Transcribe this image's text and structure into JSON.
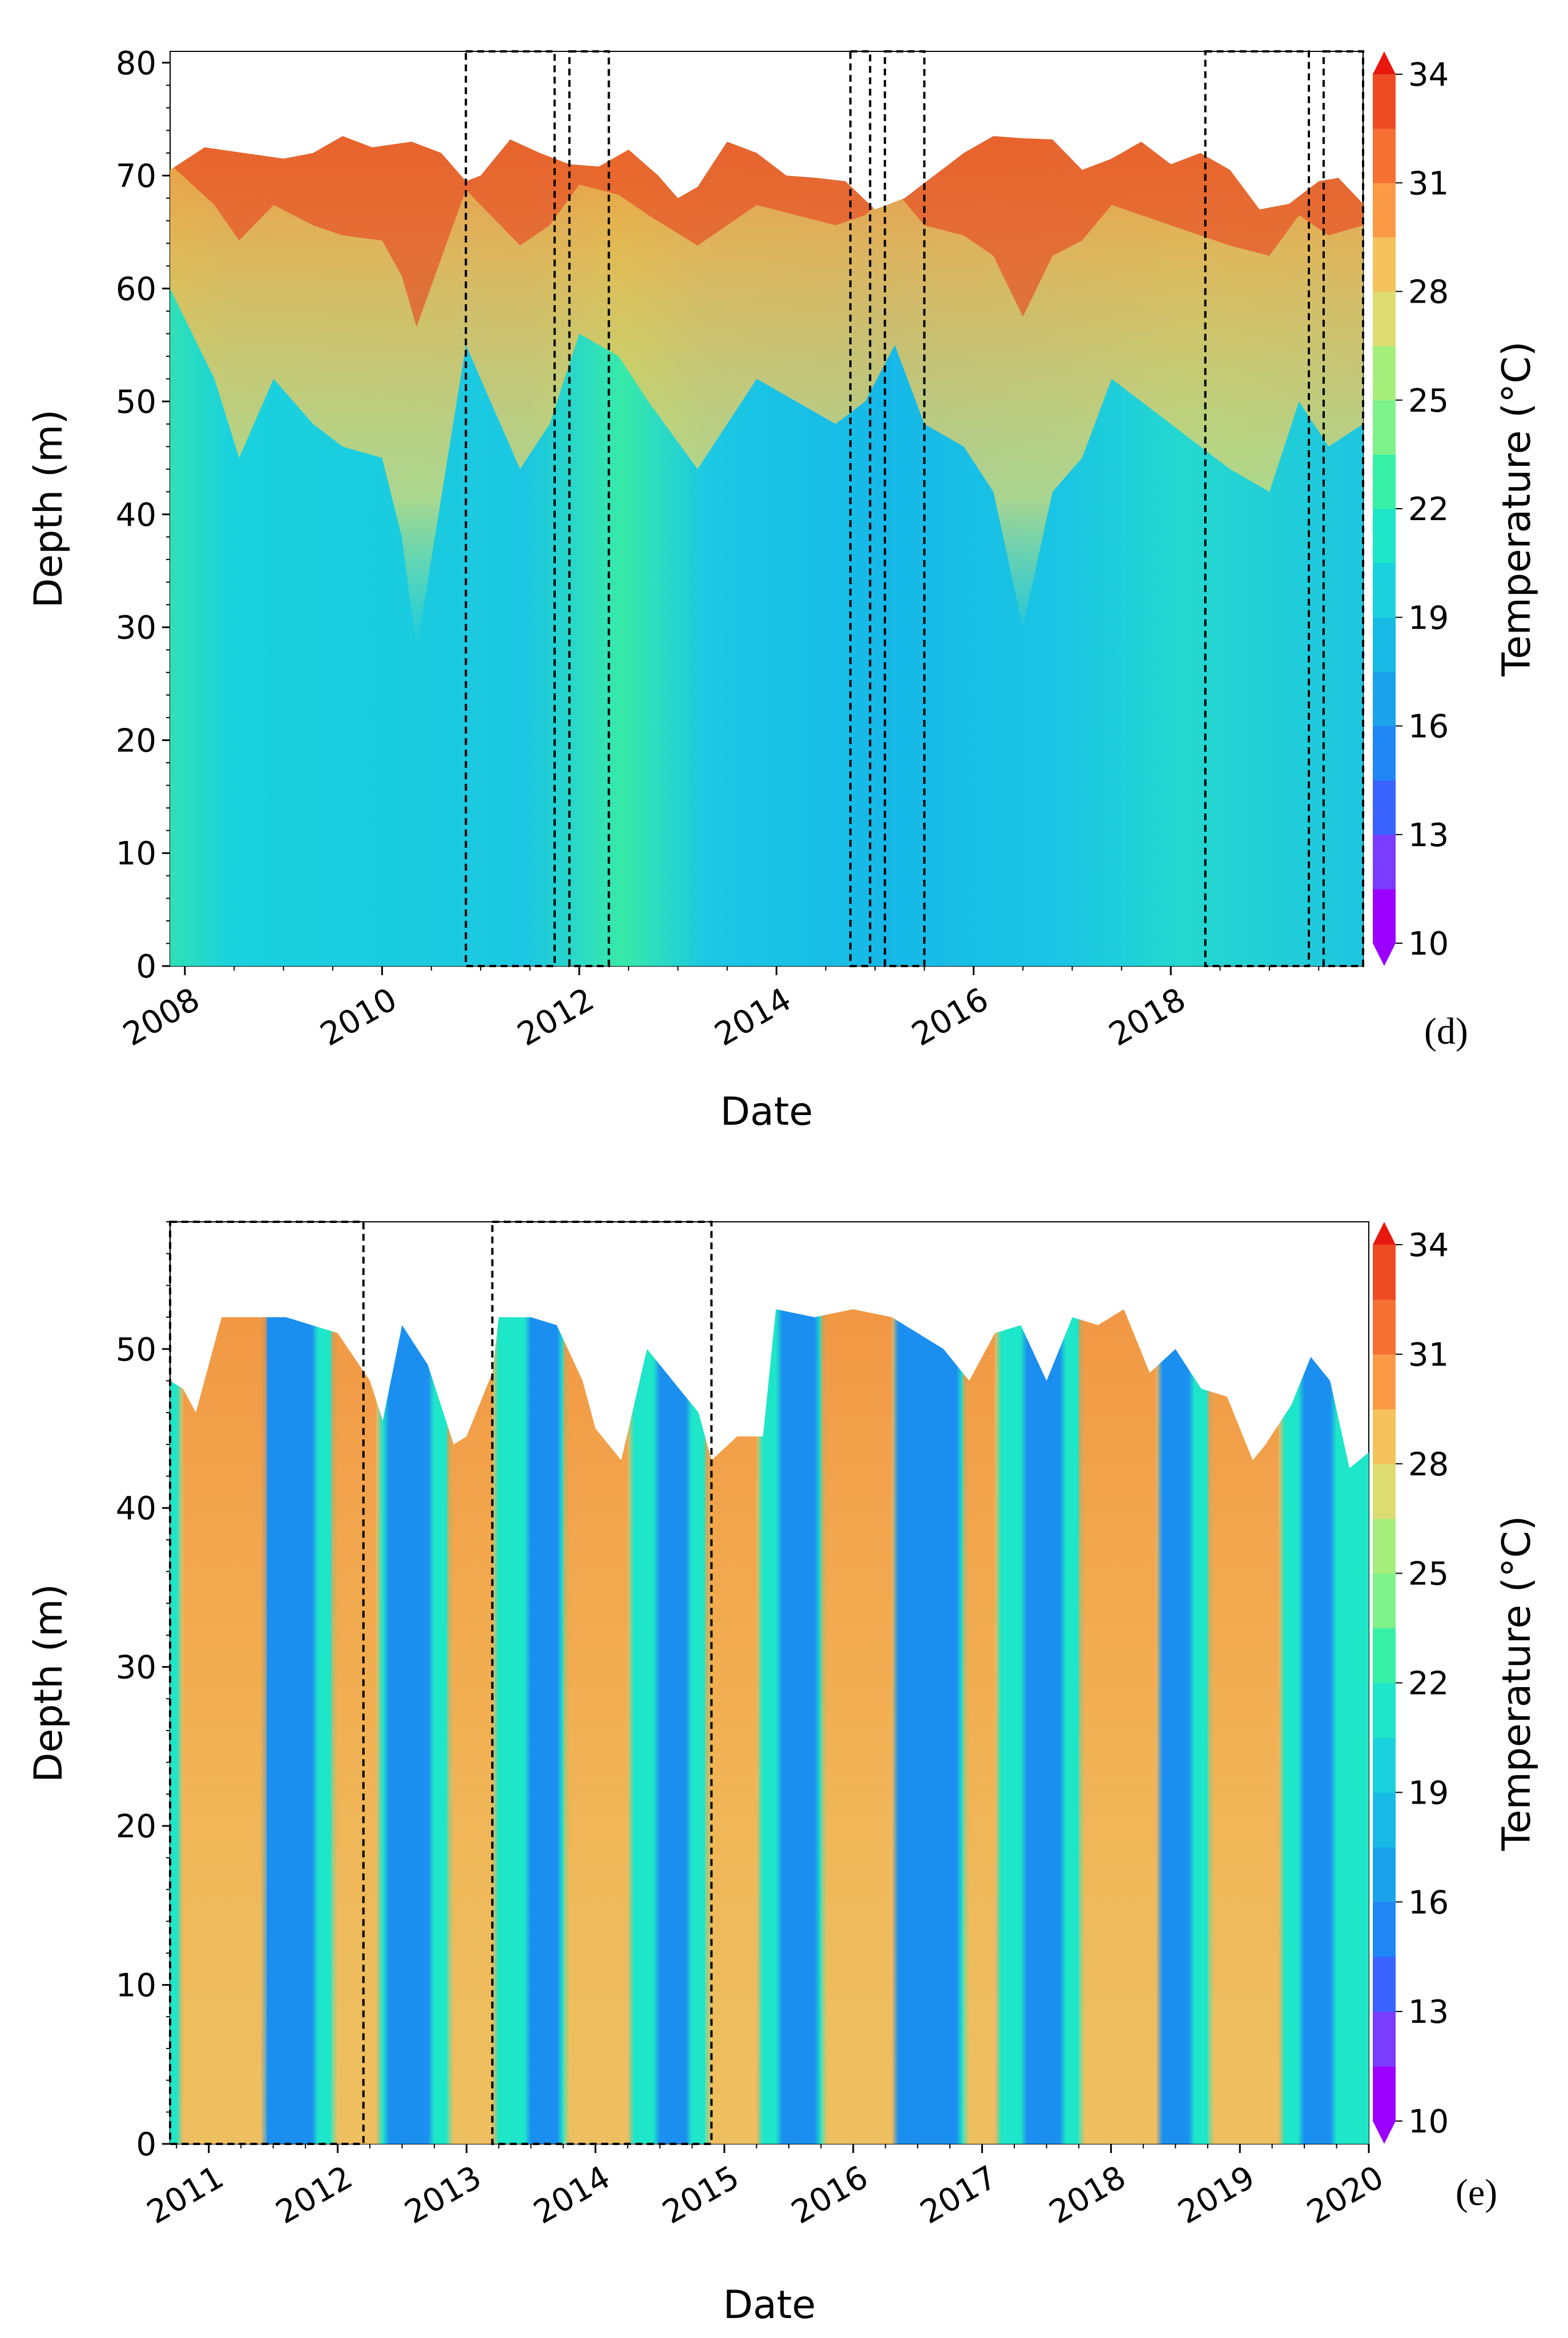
{
  "chart_data": [
    {
      "type": "heatmap",
      "panel_label": "(d)",
      "xlabel": "Date",
      "ylabel": "Depth (m)",
      "colorbar_label": "Temperature (°C)",
      "x_range": [
        2007.85,
        2019.95
      ],
      "ylim": [
        0,
        81
      ],
      "xticks": [
        2008,
        2010,
        2012,
        2014,
        2016,
        2018
      ],
      "xtick_labels": [
        "2008",
        "2010",
        "2012",
        "2014",
        "2016",
        "2018"
      ],
      "yticks": [
        0,
        10,
        20,
        30,
        40,
        50,
        60,
        70,
        80
      ],
      "ytick_labels": [
        "0",
        "10",
        "20",
        "30",
        "40",
        "50",
        "60",
        "70",
        "80"
      ],
      "colorbar_ticks": [
        10,
        13,
        16,
        19,
        22,
        25,
        28,
        31,
        34
      ],
      "colorbar_tick_labels": [
        "10",
        "13",
        "16",
        "19",
        "22",
        "25",
        "28",
        "31",
        "34"
      ],
      "surface_level": {
        "dates": [
          2007.85,
          2008.2,
          2008.6,
          2009.0,
          2009.3,
          2009.6,
          2009.9,
          2010.3,
          2010.6,
          2010.85,
          2011.0,
          2011.3,
          2011.6,
          2011.9,
          2012.2,
          2012.5,
          2012.8,
          2013.0,
          2013.2,
          2013.5,
          2013.8,
          2014.1,
          2014.4,
          2014.7,
          2015.0,
          2015.3,
          2015.6,
          2015.9,
          2016.2,
          2016.5,
          2016.8,
          2017.1,
          2017.4,
          2017.7,
          2018.0,
          2018.3,
          2018.6,
          2018.9,
          2019.2,
          2019.5,
          2019.7,
          2019.95
        ],
        "depths": [
          70.5,
          72.5,
          72.0,
          71.5,
          72.0,
          73.5,
          72.5,
          73.0,
          72.0,
          69.5,
          70.0,
          73.2,
          72.0,
          71.0,
          70.8,
          72.3,
          70.0,
          68.0,
          69.0,
          73.0,
          72.0,
          70.0,
          69.8,
          69.5,
          67.0,
          68.0,
          70.0,
          72.0,
          73.5,
          73.3,
          73.2,
          70.5,
          71.5,
          73.0,
          71.0,
          72.0,
          70.5,
          67.0,
          67.5,
          69.5,
          69.8,
          67.5
        ]
      },
      "warm_layer_bottom_depth": {
        "dates": [
          2007.85,
          2008.3,
          2008.55,
          2008.9,
          2009.3,
          2009.6,
          2010.0,
          2010.2,
          2010.35,
          2010.85,
          2011.1,
          2011.4,
          2011.7,
          2012.0,
          2012.4,
          2012.7,
          2013.2,
          2013.5,
          2013.8,
          2014.2,
          2014.6,
          2014.9,
          2015.2,
          2015.5,
          2015.9,
          2016.2,
          2016.5,
          2016.8,
          2017.1,
          2017.4,
          2017.7,
          2018.0,
          2018.3,
          2018.6,
          2019.0,
          2019.3,
          2019.6,
          2019.95
        ],
        "depths": [
          60.0,
          52.0,
          45.0,
          52.0,
          48.0,
          46.0,
          45.0,
          38.0,
          28.0,
          55.0,
          50.0,
          44.0,
          48.0,
          56.0,
          54.0,
          50.0,
          44.0,
          48.0,
          52.0,
          50.0,
          48.0,
          50.0,
          55.0,
          48.0,
          46.0,
          42.0,
          30.0,
          42.0,
          45.0,
          52.0,
          50.0,
          48.0,
          46.0,
          44.0,
          42.0,
          50.0,
          46.0,
          48.0
        ]
      },
      "highlight_boxes": [
        {
          "start": 2010.85,
          "end": 2011.75
        },
        {
          "start": 2011.9,
          "end": 2012.3
        },
        {
          "start": 2014.75,
          "end": 2014.95
        },
        {
          "start": 2015.1,
          "end": 2015.5
        },
        {
          "start": 2018.35,
          "end": 2019.4
        },
        {
          "start": 2019.55,
          "end": 2019.95
        }
      ]
    },
    {
      "type": "heatmap",
      "panel_label": "(e)",
      "xlabel": "Date",
      "ylabel": "Depth (m)",
      "colorbar_label": "Temperature (°C)",
      "x_range": [
        2010.7,
        2020.0
      ],
      "ylim": [
        0,
        58
      ],
      "xticks": [
        2011,
        2012,
        2013,
        2014,
        2015,
        2016,
        2017,
        2018,
        2019,
        2020
      ],
      "xtick_labels": [
        "2011",
        "2012",
        "2013",
        "2014",
        "2015",
        "2016",
        "2017",
        "2018",
        "2019",
        "2020"
      ],
      "yticks": [
        0,
        10,
        20,
        30,
        40,
        50
      ],
      "ytick_labels": [
        "0",
        "10",
        "20",
        "30",
        "40",
        "50"
      ],
      "colorbar_ticks": [
        10,
        13,
        16,
        19,
        22,
        25,
        28,
        31,
        34
      ],
      "colorbar_tick_labels": [
        "10",
        "13",
        "16",
        "19",
        "22",
        "25",
        "28",
        "31",
        "34"
      ],
      "surface_level": {
        "dates": [
          2010.7,
          2010.8,
          2010.9,
          2011.1,
          2011.3,
          2011.6,
          2011.8,
          2012.0,
          2012.25,
          2012.35,
          2012.5,
          2012.7,
          2012.9,
          2013.0,
          2013.2,
          2013.25,
          2013.5,
          2013.7,
          2013.9,
          2014.0,
          2014.2,
          2014.4,
          2014.6,
          2014.8,
          2014.9,
          2015.1,
          2015.3,
          2015.4,
          2015.7,
          2016.0,
          2016.3,
          2016.7,
          2016.9,
          2017.1,
          2017.3,
          2017.5,
          2017.7,
          2017.9,
          2018.1,
          2018.3,
          2018.5,
          2018.7,
          2018.9,
          2019.1,
          2019.2,
          2019.4,
          2019.55,
          2019.7,
          2019.85,
          2020.0
        ],
        "depths": [
          48.0,
          47.5,
          46.0,
          52.0,
          52.0,
          52.0,
          51.5,
          51.0,
          48.0,
          45.5,
          51.5,
          49.0,
          44.0,
          44.5,
          48.5,
          52.0,
          52.0,
          51.5,
          48.0,
          45.0,
          43.0,
          50.0,
          48.0,
          46.0,
          43.0,
          44.5,
          44.5,
          52.5,
          52.0,
          52.5,
          52.0,
          50.0,
          48.0,
          51.0,
          51.5,
          48.0,
          52.0,
          51.5,
          52.5,
          48.5,
          50.0,
          47.5,
          47.0,
          43.0,
          44.0,
          46.5,
          49.5,
          48.0,
          42.5,
          43.5
        ]
      },
      "warm_periods": [
        {
          "start": 2010.8,
          "end": 2011.45
        },
        {
          "start": 2011.95,
          "end": 2012.3
        },
        {
          "start": 2012.85,
          "end": 2013.2
        },
        {
          "start": 2013.75,
          "end": 2014.25
        },
        {
          "start": 2014.85,
          "end": 2015.25
        },
        {
          "start": 2015.75,
          "end": 2016.3
        },
        {
          "start": 2016.85,
          "end": 2017.1
        },
        {
          "start": 2017.75,
          "end": 2018.35
        },
        {
          "start": 2018.75,
          "end": 2019.3
        }
      ],
      "cold_periods": [
        {
          "start": 2011.4,
          "end": 2011.8
        },
        {
          "start": 2012.35,
          "end": 2012.7
        },
        {
          "start": 2013.45,
          "end": 2013.7
        },
        {
          "start": 2014.45,
          "end": 2014.7
        },
        {
          "start": 2015.4,
          "end": 2015.7
        },
        {
          "start": 2016.3,
          "end": 2016.8
        },
        {
          "start": 2017.3,
          "end": 2017.6
        },
        {
          "start": 2018.35,
          "end": 2018.6
        },
        {
          "start": 2019.45,
          "end": 2019.7
        }
      ],
      "highlight_boxes": [
        {
          "start": 2010.7,
          "end": 2012.2
        },
        {
          "start": 2013.2,
          "end": 2014.9
        }
      ]
    }
  ]
}
